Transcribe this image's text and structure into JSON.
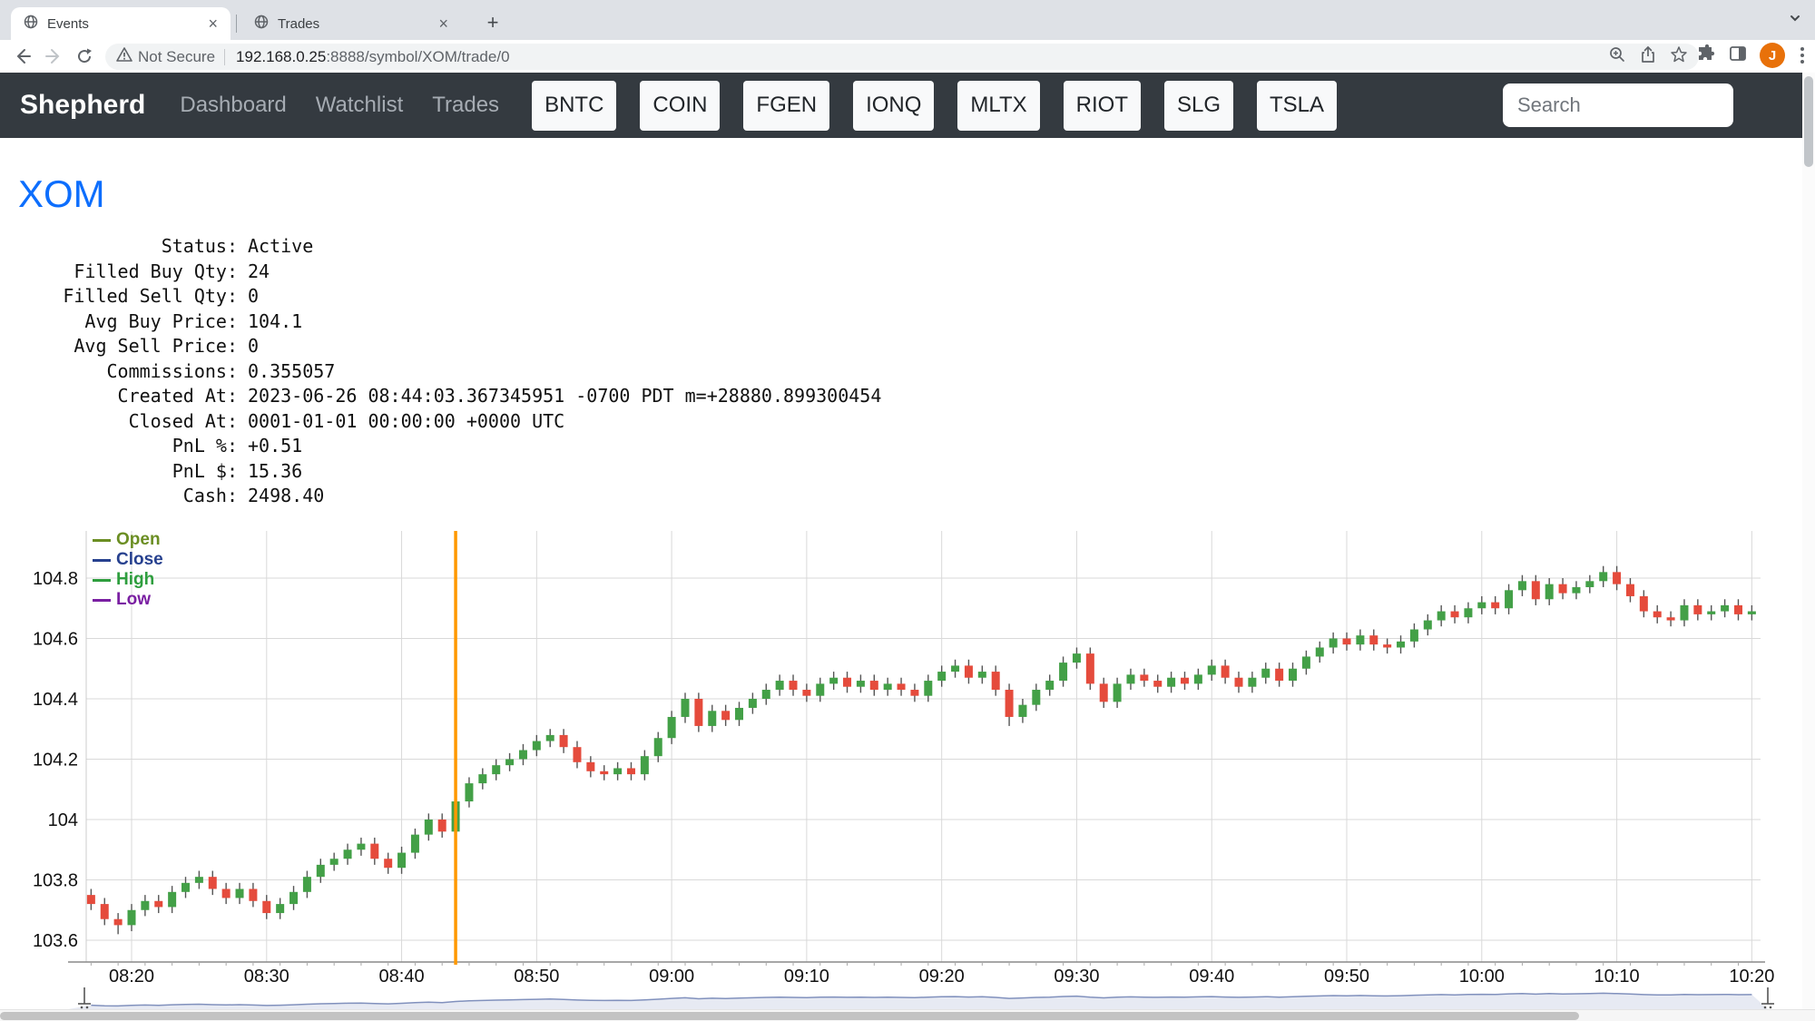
{
  "browser": {
    "tabs": [
      {
        "title": "Events",
        "favicon": "globe-icon",
        "active": true
      },
      {
        "title": "Trades",
        "favicon": "globe-icon",
        "active": false
      }
    ],
    "security_label": "Not Secure",
    "url_host": "192.168.0.25",
    "url_rest": ":8888/symbol/XOM/trade/0",
    "profile_initial": "J",
    "avatar_color": "#e8710a"
  },
  "navbar": {
    "brand": "Shepherd",
    "links": [
      "Dashboard",
      "Watchlist",
      "Trades"
    ],
    "tickers": [
      "BNTC",
      "COIN",
      "FGEN",
      "IONQ",
      "MLTX",
      "RIOT",
      "SLG",
      "TSLA"
    ],
    "search_placeholder": "Search",
    "bg_color": "#343a40"
  },
  "page": {
    "symbol": "XOM",
    "symbol_color": "#0d6efd",
    "details": [
      {
        "label": "Status:",
        "value": "Active"
      },
      {
        "label": "Filled Buy Qty:",
        "value": "24"
      },
      {
        "label": "Filled Sell Qty:",
        "value": "0"
      },
      {
        "label": "Avg Buy Price:",
        "value": "104.1"
      },
      {
        "label": "Avg Sell Price:",
        "value": "0"
      },
      {
        "label": "Commissions:",
        "value": "0.355057"
      },
      {
        "label": "Created At:",
        "value": "2023-06-26 08:44:03.367345951 -0700 PDT m=+28880.899300454"
      },
      {
        "label": "Closed At:",
        "value": "0001-01-01 00:00:00 +0000 UTC"
      },
      {
        "label": "PnL %:",
        "value": "+0.51"
      },
      {
        "label": "PnL $:",
        "value": "15.36"
      },
      {
        "label": "Cash:",
        "value": "2498.40"
      }
    ]
  },
  "chart_data": {
    "type": "candlestick",
    "legend": [
      {
        "label": "Open",
        "color": "#6b8e23"
      },
      {
        "label": "Close",
        "color": "#27418f"
      },
      {
        "label": "High",
        "color": "#2e9e3e"
      },
      {
        "label": "Low",
        "color": "#7a1fa2"
      }
    ],
    "yticks": [
      "104.8",
      "104.6",
      "104.4",
      "104.2",
      "104",
      "103.8",
      "103.6"
    ],
    "ylim": [
      103.53,
      104.96
    ],
    "xticks": [
      "08:20",
      "08:30",
      "08:40",
      "08:50",
      "09:00",
      "09:10",
      "09:20",
      "09:30",
      "09:40",
      "09:50",
      "10:00",
      "10:10",
      "10:20"
    ],
    "start_time": "08:17",
    "interval_minutes": 1,
    "marker_line": {
      "time": "08:44",
      "color": "#ff9800"
    },
    "up_color": "#43a047",
    "down_color": "#e54b3c",
    "wick_color": "#555555",
    "grid": true,
    "navigator": {
      "line_color": "#8191bd",
      "fill_color": "#e7eaf3"
    },
    "ohlc": [
      [
        103.75,
        103.77,
        103.7,
        103.72
      ],
      [
        103.72,
        103.74,
        103.65,
        103.67
      ],
      [
        103.67,
        103.69,
        103.62,
        103.65
      ],
      [
        103.65,
        103.72,
        103.63,
        103.7
      ],
      [
        103.7,
        103.75,
        103.68,
        103.73
      ],
      [
        103.73,
        103.75,
        103.69,
        103.71
      ],
      [
        103.71,
        103.78,
        103.69,
        103.76
      ],
      [
        103.76,
        103.81,
        103.74,
        103.79
      ],
      [
        103.79,
        103.83,
        103.77,
        103.81
      ],
      [
        103.81,
        103.83,
        103.75,
        103.77
      ],
      [
        103.77,
        103.79,
        103.72,
        103.74
      ],
      [
        103.74,
        103.79,
        103.72,
        103.77
      ],
      [
        103.77,
        103.79,
        103.71,
        103.73
      ],
      [
        103.73,
        103.75,
        103.67,
        103.69
      ],
      [
        103.69,
        103.74,
        103.67,
        103.72
      ],
      [
        103.72,
        103.78,
        103.7,
        103.76
      ],
      [
        103.76,
        103.83,
        103.74,
        103.81
      ],
      [
        103.81,
        103.87,
        103.79,
        103.85
      ],
      [
        103.85,
        103.89,
        103.83,
        103.87
      ],
      [
        103.87,
        103.92,
        103.85,
        103.9
      ],
      [
        103.9,
        103.94,
        103.88,
        103.92
      ],
      [
        103.92,
        103.94,
        103.85,
        103.87
      ],
      [
        103.87,
        103.89,
        103.82,
        103.84
      ],
      [
        103.84,
        103.91,
        103.82,
        103.89
      ],
      [
        103.89,
        103.97,
        103.87,
        103.95
      ],
      [
        103.95,
        104.02,
        103.93,
        104.0
      ],
      [
        104.0,
        104.02,
        103.94,
        103.96
      ],
      [
        103.96,
        104.08,
        103.94,
        104.06
      ],
      [
        104.06,
        104.14,
        104.04,
        104.12
      ],
      [
        104.12,
        104.17,
        104.1,
        104.15
      ],
      [
        104.15,
        104.2,
        104.13,
        104.18
      ],
      [
        104.18,
        104.22,
        104.16,
        104.2
      ],
      [
        104.2,
        104.25,
        104.18,
        104.23
      ],
      [
        104.23,
        104.28,
        104.21,
        104.26
      ],
      [
        104.26,
        104.3,
        104.24,
        104.28
      ],
      [
        104.28,
        104.3,
        104.22,
        104.24
      ],
      [
        104.24,
        104.26,
        104.17,
        104.19
      ],
      [
        104.19,
        104.21,
        104.14,
        104.16
      ],
      [
        104.16,
        104.18,
        104.13,
        104.15
      ],
      [
        104.15,
        104.19,
        104.13,
        104.17
      ],
      [
        104.17,
        104.19,
        104.13,
        104.15
      ],
      [
        104.15,
        104.23,
        104.13,
        104.21
      ],
      [
        104.21,
        104.29,
        104.19,
        104.27
      ],
      [
        104.27,
        104.36,
        104.25,
        104.34
      ],
      [
        104.34,
        104.42,
        104.32,
        104.4
      ],
      [
        104.4,
        104.42,
        104.29,
        104.31
      ],
      [
        104.31,
        104.38,
        104.29,
        104.36
      ],
      [
        104.36,
        104.38,
        104.31,
        104.33
      ],
      [
        104.33,
        104.39,
        104.31,
        104.37
      ],
      [
        104.37,
        104.42,
        104.35,
        104.4
      ],
      [
        104.4,
        104.45,
        104.38,
        104.43
      ],
      [
        104.43,
        104.48,
        104.41,
        104.46
      ],
      [
        104.46,
        104.48,
        104.41,
        104.43
      ],
      [
        104.43,
        104.45,
        104.39,
        104.41
      ],
      [
        104.41,
        104.47,
        104.39,
        104.45
      ],
      [
        104.45,
        104.49,
        104.43,
        104.47
      ],
      [
        104.47,
        104.49,
        104.42,
        104.44
      ],
      [
        104.44,
        104.48,
        104.42,
        104.46
      ],
      [
        104.46,
        104.48,
        104.41,
        104.43
      ],
      [
        104.43,
        104.47,
        104.41,
        104.45
      ],
      [
        104.45,
        104.47,
        104.41,
        104.43
      ],
      [
        104.43,
        104.45,
        104.39,
        104.41
      ],
      [
        104.41,
        104.48,
        104.39,
        104.46
      ],
      [
        104.46,
        104.51,
        104.44,
        104.49
      ],
      [
        104.49,
        104.53,
        104.47,
        104.51
      ],
      [
        104.51,
        104.53,
        104.45,
        104.47
      ],
      [
        104.47,
        104.51,
        104.45,
        104.49
      ],
      [
        104.49,
        104.51,
        104.41,
        104.43
      ],
      [
        104.43,
        104.45,
        104.31,
        104.34
      ],
      [
        104.34,
        104.4,
        104.32,
        104.38
      ],
      [
        104.38,
        104.45,
        104.36,
        104.43
      ],
      [
        104.43,
        104.48,
        104.41,
        104.46
      ],
      [
        104.46,
        104.54,
        104.44,
        104.52
      ],
      [
        104.52,
        104.57,
        104.5,
        104.55
      ],
      [
        104.55,
        104.57,
        104.43,
        104.45
      ],
      [
        104.45,
        104.47,
        104.37,
        104.39
      ],
      [
        104.39,
        104.47,
        104.37,
        104.45
      ],
      [
        104.45,
        104.5,
        104.43,
        104.48
      ],
      [
        104.48,
        104.5,
        104.44,
        104.46
      ],
      [
        104.46,
        104.48,
        104.42,
        104.44
      ],
      [
        104.44,
        104.49,
        104.42,
        104.47
      ],
      [
        104.47,
        104.49,
        104.43,
        104.45
      ],
      [
        104.45,
        104.5,
        104.43,
        104.48
      ],
      [
        104.48,
        104.53,
        104.46,
        104.51
      ],
      [
        104.51,
        104.53,
        104.45,
        104.47
      ],
      [
        104.47,
        104.49,
        104.42,
        104.44
      ],
      [
        104.44,
        104.49,
        104.42,
        104.47
      ],
      [
        104.47,
        104.52,
        104.45,
        104.5
      ],
      [
        104.5,
        104.52,
        104.44,
        104.46
      ],
      [
        104.46,
        104.52,
        104.44,
        104.5
      ],
      [
        104.5,
        104.56,
        104.48,
        104.54
      ],
      [
        104.54,
        104.59,
        104.52,
        104.57
      ],
      [
        104.57,
        104.62,
        104.55,
        104.6
      ],
      [
        104.6,
        104.62,
        104.56,
        104.58
      ],
      [
        104.58,
        104.63,
        104.56,
        104.61
      ],
      [
        104.61,
        104.63,
        104.56,
        104.58
      ],
      [
        104.58,
        104.6,
        104.55,
        104.57
      ],
      [
        104.57,
        104.61,
        104.55,
        104.59
      ],
      [
        104.59,
        104.65,
        104.57,
        104.63
      ],
      [
        104.63,
        104.68,
        104.61,
        104.66
      ],
      [
        104.66,
        104.71,
        104.64,
        104.69
      ],
      [
        104.69,
        104.71,
        104.65,
        104.67
      ],
      [
        104.67,
        104.72,
        104.65,
        104.7
      ],
      [
        104.7,
        104.74,
        104.68,
        104.72
      ],
      [
        104.72,
        104.74,
        104.68,
        104.7
      ],
      [
        104.7,
        104.78,
        104.68,
        104.76
      ],
      [
        104.76,
        104.81,
        104.74,
        104.79
      ],
      [
        104.79,
        104.81,
        104.71,
        104.73
      ],
      [
        104.73,
        104.8,
        104.71,
        104.78
      ],
      [
        104.78,
        104.8,
        104.73,
        104.75
      ],
      [
        104.75,
        104.79,
        104.73,
        104.77
      ],
      [
        104.77,
        104.81,
        104.75,
        104.79
      ],
      [
        104.79,
        104.84,
        104.77,
        104.82
      ],
      [
        104.82,
        104.84,
        104.76,
        104.78
      ],
      [
        104.78,
        104.8,
        104.72,
        104.74
      ],
      [
        104.74,
        104.76,
        104.67,
        104.69
      ],
      [
        104.69,
        104.71,
        104.65,
        104.67
      ],
      [
        104.67,
        104.69,
        104.64,
        104.66
      ],
      [
        104.66,
        104.73,
        104.64,
        104.71
      ],
      [
        104.71,
        104.73,
        104.66,
        104.68
      ],
      [
        104.68,
        104.71,
        104.66,
        104.69
      ],
      [
        104.69,
        104.73,
        104.67,
        104.71
      ],
      [
        104.71,
        104.73,
        104.66,
        104.68
      ],
      [
        104.68,
        104.71,
        104.66,
        104.69
      ]
    ]
  }
}
